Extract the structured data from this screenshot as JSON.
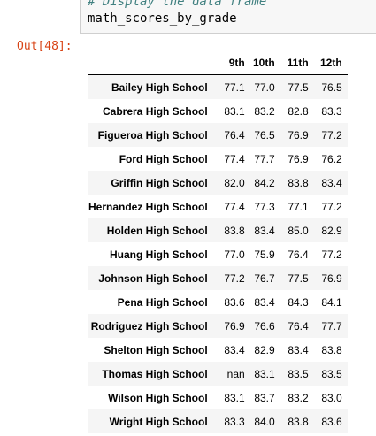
{
  "input_cell": {
    "comment": "# Display the data frame",
    "expression": "math_scores_by_grade"
  },
  "output": {
    "prompt": "Out[48]:"
  },
  "table": {
    "index_header": "",
    "columns": [
      "9th",
      "10th",
      "11th",
      "12th"
    ],
    "rows": [
      {
        "school": "Bailey High School",
        "values": [
          "77.1",
          "77.0",
          "77.5",
          "76.5"
        ]
      },
      {
        "school": "Cabrera High School",
        "values": [
          "83.1",
          "83.2",
          "82.8",
          "83.3"
        ]
      },
      {
        "school": "Figueroa High School",
        "values": [
          "76.4",
          "76.5",
          "76.9",
          "77.2"
        ]
      },
      {
        "school": "Ford High School",
        "values": [
          "77.4",
          "77.7",
          "76.9",
          "76.2"
        ]
      },
      {
        "school": "Griffin High School",
        "values": [
          "82.0",
          "84.2",
          "83.8",
          "83.4"
        ]
      },
      {
        "school": "Hernandez High School",
        "values": [
          "77.4",
          "77.3",
          "77.1",
          "77.2"
        ]
      },
      {
        "school": "Holden High School",
        "values": [
          "83.8",
          "83.4",
          "85.0",
          "82.9"
        ]
      },
      {
        "school": "Huang High School",
        "values": [
          "77.0",
          "75.9",
          "76.4",
          "77.2"
        ]
      },
      {
        "school": "Johnson High School",
        "values": [
          "77.2",
          "76.7",
          "77.5",
          "76.9"
        ]
      },
      {
        "school": "Pena High School",
        "values": [
          "83.6",
          "83.4",
          "84.3",
          "84.1"
        ]
      },
      {
        "school": "Rodriguez High School",
        "values": [
          "76.9",
          "76.6",
          "76.4",
          "77.7"
        ]
      },
      {
        "school": "Shelton High School",
        "values": [
          "83.4",
          "82.9",
          "83.4",
          "83.8"
        ]
      },
      {
        "school": "Thomas High School",
        "values": [
          "nan",
          "83.1",
          "83.5",
          "83.5"
        ]
      },
      {
        "school": "Wilson High School",
        "values": [
          "83.1",
          "83.7",
          "83.2",
          "83.0"
        ]
      },
      {
        "school": "Wright High School",
        "values": [
          "83.3",
          "84.0",
          "83.8",
          "83.6"
        ]
      }
    ]
  }
}
